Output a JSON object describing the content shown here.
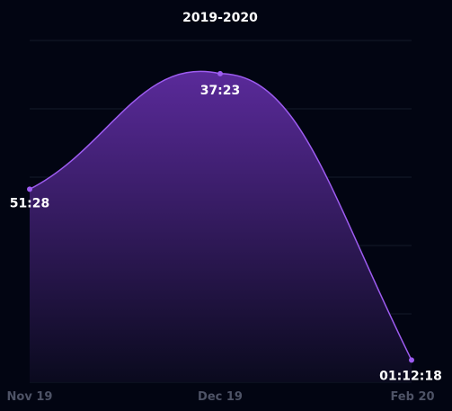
{
  "chart_data": {
    "type": "area",
    "title": "2019-2020",
    "categories": [
      "Nov 19",
      "Dec 19",
      "Feb 20"
    ],
    "series": [
      {
        "values": [
          3088,
          2243,
          4338
        ],
        "value_labels": [
          "51:28",
          "37:23",
          "01:12:18"
        ]
      }
    ],
    "y_unit": "seconds",
    "ylim": [
      4500,
      2000
    ],
    "y_inverted": true,
    "grid": true,
    "legend": "none",
    "line_color": "#9d5cf0",
    "fill_color_top": "#5a2a9a",
    "fill_color_bottom": "#0a0a1e"
  }
}
